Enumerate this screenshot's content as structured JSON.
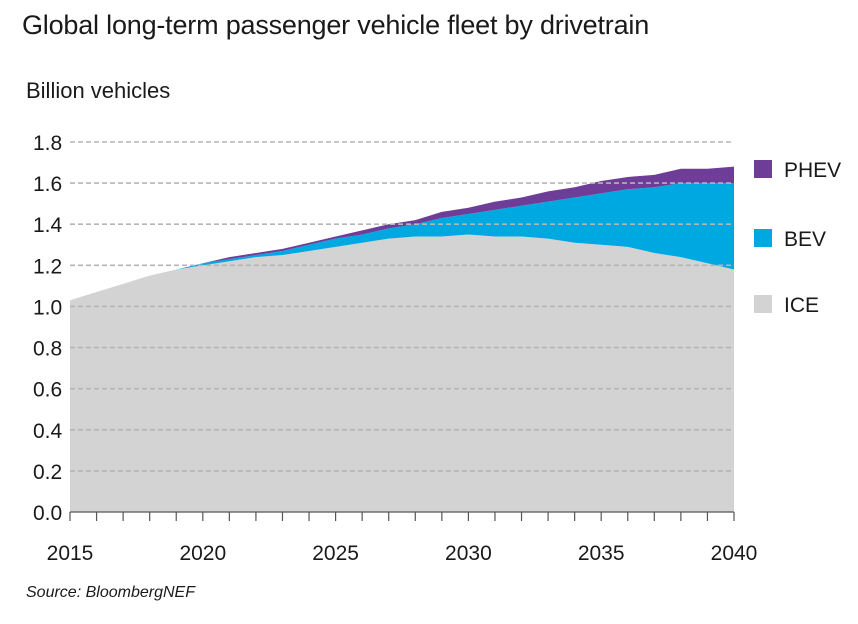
{
  "header": {
    "title": "Global long-term passenger vehicle fleet by drivetrain",
    "ylabel": "Billion vehicles",
    "source": "Source: BloombergNEF"
  },
  "chart_data": {
    "type": "area",
    "stacked": true,
    "title": "Global long-term passenger vehicle fleet by drivetrain",
    "ylabel": "Billion vehicles",
    "xlabel": "",
    "x": [
      2015,
      2016,
      2017,
      2018,
      2019,
      2020,
      2021,
      2022,
      2023,
      2024,
      2025,
      2026,
      2027,
      2028,
      2029,
      2030,
      2031,
      2032,
      2033,
      2034,
      2035,
      2036,
      2037,
      2038,
      2039,
      2040
    ],
    "xlim": [
      2015,
      2040
    ],
    "ylim": [
      0,
      1.8
    ],
    "x_ticks": [
      "2015",
      "2020",
      "2025",
      "2030",
      "2035",
      "2040"
    ],
    "y_ticks": [
      "0.0",
      "0.2",
      "0.4",
      "0.6",
      "0.8",
      "1.0",
      "1.2",
      "1.4",
      "1.6",
      "1.8"
    ],
    "grid": "horizontal dashed",
    "legend_position": "right",
    "series": [
      {
        "name": "ICE",
        "color": "#d3d3d3",
        "values": [
          1.03,
          1.07,
          1.11,
          1.15,
          1.18,
          1.2,
          1.22,
          1.24,
          1.25,
          1.27,
          1.29,
          1.31,
          1.33,
          1.34,
          1.34,
          1.35,
          1.34,
          1.34,
          1.33,
          1.31,
          1.3,
          1.29,
          1.26,
          1.24,
          1.21,
          1.18
        ]
      },
      {
        "name": "BEV",
        "color": "#00a8e1",
        "values": [
          0.0,
          0.0,
          0.0,
          0.0,
          0.0,
          0.01,
          0.01,
          0.01,
          0.02,
          0.03,
          0.04,
          0.04,
          0.05,
          0.06,
          0.09,
          0.1,
          0.13,
          0.15,
          0.18,
          0.22,
          0.25,
          0.28,
          0.32,
          0.36,
          0.39,
          0.42
        ]
      },
      {
        "name": "PHEV",
        "color": "#6d3d97",
        "values": [
          0.0,
          0.0,
          0.0,
          0.0,
          0.0,
          0.0,
          0.01,
          0.01,
          0.01,
          0.01,
          0.01,
          0.02,
          0.02,
          0.02,
          0.03,
          0.03,
          0.04,
          0.04,
          0.05,
          0.05,
          0.06,
          0.06,
          0.06,
          0.07,
          0.07,
          0.08
        ]
      }
    ],
    "legend": [
      "PHEV",
      "BEV",
      "ICE"
    ]
  }
}
